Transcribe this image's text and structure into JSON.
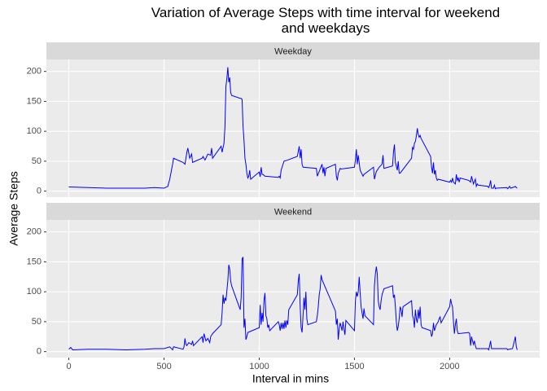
{
  "title": "Variation of Average Steps with time interval for weekend\nand weekdays",
  "x_label": "Interval in mins",
  "y_label": "Average Steps",
  "chart_data": [
    {
      "type": "line",
      "facet": "Weekday",
      "color": "#0000ff",
      "grid": true,
      "xlim": [
        -117.75,
        2472.75
      ],
      "xticks": [
        0,
        500,
        1000,
        1500,
        2000
      ],
      "ylim": [
        -10,
        220
      ],
      "yticks": [
        0,
        50,
        100,
        150,
        200
      ],
      "x": [
        0,
        100,
        200,
        300,
        400,
        450,
        500,
        520,
        530,
        545,
        550,
        600,
        610,
        620,
        625,
        635,
        645,
        650,
        700,
        705,
        715,
        720,
        730,
        745,
        750,
        755,
        800,
        805,
        815,
        820,
        825,
        830,
        835,
        840,
        845,
        850,
        855,
        900,
        905,
        910,
        915,
        920,
        925,
        930,
        935,
        940,
        945,
        950,
        955,
        1000,
        1005,
        1010,
        1015,
        1020,
        1030,
        1100,
        1105,
        1110,
        1115,
        1120,
        1130,
        1150,
        1200,
        1210,
        1215,
        1220,
        1225,
        1230,
        1300,
        1305,
        1330,
        1335,
        1340,
        1345,
        1350,
        1400,
        1405,
        1410,
        1415,
        1425,
        1430,
        1500,
        1505,
        1510,
        1515,
        1520,
        1530,
        1545,
        1550,
        1600,
        1605,
        1615,
        1620,
        1630,
        1645,
        1650,
        1655,
        1700,
        1705,
        1710,
        1715,
        1725,
        1730,
        1735,
        1740,
        1800,
        1805,
        1810,
        1815,
        1820,
        1825,
        1830,
        1835,
        1840,
        1845,
        1850,
        1855,
        1900,
        1905,
        1910,
        1915,
        1920,
        1925,
        1930,
        1935,
        1940,
        2000,
        2005,
        2010,
        2015,
        2020,
        2030,
        2035,
        2040,
        2045,
        2050,
        2055,
        2100,
        2110,
        2115,
        2125,
        2135,
        2140,
        2145,
        2150,
        2200,
        2205,
        2210,
        2215,
        2220,
        2230,
        2235,
        2240,
        2245,
        2300,
        2305,
        2315,
        2320,
        2330,
        2340,
        2345,
        2350,
        2355
      ],
      "values": [
        7,
        6,
        5,
        5,
        5,
        6,
        5,
        8,
        20,
        45,
        55,
        48,
        45,
        65,
        72,
        55,
        62,
        48,
        55,
        58,
        52,
        55,
        62,
        60,
        72,
        55,
        75,
        65,
        80,
        108,
        175,
        188,
        207,
        182,
        190,
        165,
        160,
        155,
        155,
        153,
        108,
        85,
        55,
        45,
        30,
        22,
        25,
        35,
        20,
        32,
        24,
        40,
        28,
        28,
        25,
        23,
        25,
        22,
        35,
        40,
        50,
        52,
        58,
        75,
        55,
        70,
        45,
        40,
        38,
        25,
        45,
        30,
        40,
        25,
        38,
        45,
        25,
        18,
        30,
        38,
        37,
        40,
        52,
        70,
        45,
        60,
        35,
        25,
        28,
        40,
        20,
        33,
        35,
        40,
        45,
        60,
        38,
        42,
        65,
        78,
        48,
        35,
        50,
        30,
        30,
        55,
        73,
        70,
        80,
        83,
        92,
        105,
        95,
        90,
        93,
        88,
        85,
        58,
        40,
        30,
        48,
        28,
        35,
        22,
        18,
        20,
        15,
        18,
        15,
        22,
        15,
        12,
        28,
        18,
        22,
        15,
        22,
        18,
        15,
        25,
        12,
        20,
        8,
        12,
        10,
        8,
        6,
        10,
        18,
        5,
        5,
        10,
        4,
        5,
        6,
        4,
        8,
        5,
        6,
        7,
        8,
        6,
        5
      ]
    },
    {
      "type": "line",
      "facet": "Weekend",
      "color": "#0000ff",
      "grid": true,
      "xlim": [
        -117.75,
        2472.75
      ],
      "xticks": [
        0,
        500,
        1000,
        1500,
        2000
      ],
      "ylim": [
        -10,
        220
      ],
      "yticks": [
        0,
        50,
        100,
        150,
        200
      ],
      "x": [
        0,
        10,
        20,
        100,
        200,
        300,
        400,
        450,
        500,
        530,
        545,
        550,
        600,
        605,
        610,
        615,
        620,
        630,
        645,
        650,
        655,
        700,
        705,
        710,
        720,
        730,
        740,
        745,
        755,
        800,
        805,
        810,
        815,
        820,
        825,
        835,
        840,
        845,
        850,
        855,
        900,
        905,
        910,
        915,
        920,
        925,
        930,
        935,
        940,
        1000,
        1005,
        1010,
        1015,
        1020,
        1025,
        1030,
        1035,
        1040,
        1045,
        1050,
        1055,
        1100,
        1105,
        1110,
        1115,
        1120,
        1125,
        1130,
        1135,
        1140,
        1145,
        1150,
        1155,
        1200,
        1205,
        1210,
        1215,
        1220,
        1225,
        1230,
        1235,
        1240,
        1245,
        1250,
        1255,
        1300,
        1305,
        1310,
        1315,
        1320,
        1325,
        1330,
        1400,
        1405,
        1410,
        1415,
        1420,
        1425,
        1430,
        1435,
        1440,
        1445,
        1450,
        1455,
        1500,
        1505,
        1510,
        1515,
        1520,
        1525,
        1530,
        1535,
        1540,
        1545,
        1550,
        1555,
        1600,
        1605,
        1610,
        1615,
        1620,
        1625,
        1630,
        1635,
        1640,
        1645,
        1650,
        1655,
        1700,
        1705,
        1710,
        1715,
        1720,
        1725,
        1730,
        1735,
        1740,
        1745,
        1750,
        1755,
        1800,
        1805,
        1810,
        1815,
        1820,
        1825,
        1830,
        1835,
        1840,
        1845,
        1850,
        1855,
        1900,
        1905,
        1910,
        1915,
        1920,
        1930,
        1940,
        1945,
        1950,
        1955,
        2000,
        2005,
        2010,
        2015,
        2020,
        2025,
        2030,
        2035,
        2040,
        2045,
        2100,
        2105,
        2110,
        2115,
        2120,
        2125,
        2130,
        2135,
        2140,
        2200,
        2205,
        2210,
        2215,
        2220,
        2300,
        2305,
        2310,
        2330,
        2340,
        2345,
        2350,
        2355
      ],
      "values": [
        4,
        7,
        3,
        4,
        4,
        3,
        4,
        5,
        5,
        8,
        3,
        8,
        4,
        8,
        22,
        12,
        10,
        15,
        12,
        18,
        10,
        25,
        15,
        30,
        18,
        22,
        15,
        25,
        30,
        45,
        65,
        95,
        80,
        90,
        85,
        118,
        145,
        138,
        118,
        110,
        70,
        90,
        155,
        158,
        40,
        55,
        20,
        25,
        32,
        40,
        78,
        45,
        65,
        50,
        85,
        98,
        60,
        55,
        40,
        45,
        35,
        50,
        45,
        35,
        48,
        38,
        48,
        38,
        52,
        40,
        52,
        45,
        70,
        95,
        118,
        130,
        75,
        40,
        32,
        60,
        90,
        70,
        100,
        55,
        45,
        50,
        60,
        75,
        95,
        105,
        128,
        120,
        68,
        45,
        55,
        20,
        38,
        48,
        42,
        35,
        50,
        38,
        28,
        52,
        35,
        85,
        100,
        92,
        100,
        125,
        98,
        75,
        65,
        55,
        72,
        60,
        45,
        110,
        130,
        142,
        130,
        85,
        75,
        70,
        85,
        95,
        100,
        105,
        110,
        90,
        95,
        75,
        50,
        35,
        42,
        55,
        75,
        70,
        58,
        75,
        85,
        60,
        55,
        40,
        70,
        55,
        48,
        70,
        55,
        75,
        45,
        40,
        35,
        25,
        30,
        48,
        35,
        45,
        50,
        55,
        58,
        48,
        75,
        88,
        80,
        75,
        50,
        30,
        45,
        55,
        35,
        30,
        32,
        30,
        10,
        25,
        18,
        12,
        18,
        10,
        5,
        5,
        3,
        10,
        18,
        5,
        5,
        3,
        4,
        5,
        18,
        25,
        8,
        3
      ]
    }
  ]
}
